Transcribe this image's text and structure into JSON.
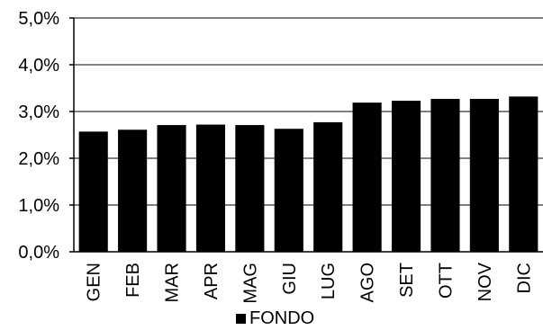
{
  "chart_data": {
    "type": "bar",
    "categories": [
      "GEN",
      "FEB",
      "MAR",
      "APR",
      "MAG",
      "GIU",
      "LUG",
      "AGO",
      "SET",
      "OTT",
      "NOV",
      "DIC"
    ],
    "series": [
      {
        "name": "FONDO",
        "values": [
          2.57,
          2.61,
          2.71,
          2.72,
          2.71,
          2.63,
          2.77,
          3.19,
          3.23,
          3.27,
          3.27,
          3.32
        ]
      }
    ],
    "ylim": [
      0,
      5
    ],
    "yticks": [
      "0,0%",
      "1,0%",
      "2,0%",
      "3,0%",
      "4,0%",
      "5,0%"
    ],
    "grid": true,
    "legend_position": "bottom",
    "bar_color": "#000000"
  }
}
